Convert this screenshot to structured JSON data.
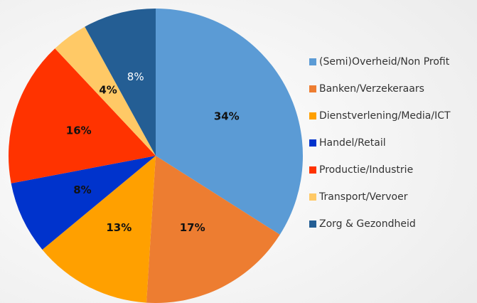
{
  "chart_data": {
    "type": "pie",
    "categories": [
      "(Semi)Overheid/Non Profit",
      "Banken/Verzekeraars",
      "Dienstverlening/Media/ICT",
      "Handel/Retail",
      "Productie/Industrie",
      "Transport/Vervoer",
      "Zorg & Gezondheid"
    ],
    "values": [
      34,
      17,
      13,
      8,
      16,
      4,
      8
    ],
    "value_labels": [
      "34%",
      "17%",
      "13%",
      "8%",
      "16%",
      "4%",
      "8%"
    ],
    "colors": [
      "#5b9bd5",
      "#ed7d31",
      "#ffa000",
      "#0033cc",
      "#ff3300",
      "#ffc966",
      "#245e94"
    ],
    "value_label_colors": [
      "#111111",
      "#111111",
      "#111111",
      "#111111",
      "#111111",
      "#111111",
      "#ffffff"
    ],
    "legend": "right"
  }
}
